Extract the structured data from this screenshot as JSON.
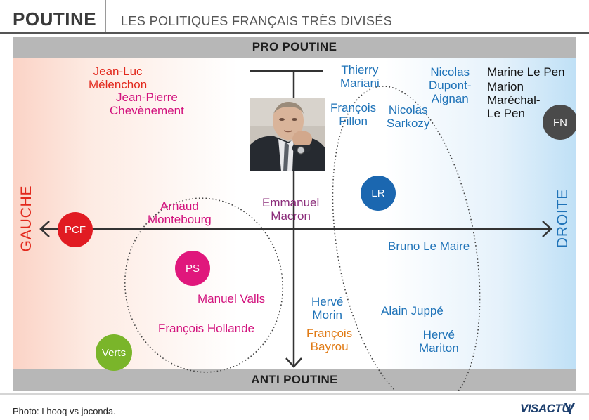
{
  "header": {
    "brand": "POUTINE",
    "subtitle": "LES POLITIQUES FRANÇAIS TRÈS DIVISÉS"
  },
  "axes": {
    "top": "PRO POUTINE",
    "bottom": "ANTI POUTINE",
    "left": "GAUCHE",
    "right": "DROITE"
  },
  "colors": {
    "left_red": "#e2281c",
    "magenta": "#d2127d",
    "purple": "#8b2c7a",
    "blue": "#1f73b8",
    "orange": "#e07a14",
    "black": "#111111",
    "pcf": "#e11b22",
    "ps": "#e0177c",
    "lr": "#1b67b0",
    "fn": "#4a4a4a",
    "verts": "#7ab52a"
  },
  "parties": {
    "pcf": "PCF",
    "ps": "PS",
    "lr": "LR",
    "fn": "FN",
    "verts": "Verts"
  },
  "politicians": {
    "melenchon": "Jean-Luc\nMélenchon",
    "chevenement": "Jean-Pierre\nChevènement",
    "mariani": "Thierry\nMariani",
    "dupont_aignan": "Nicolas\nDupont-\nAignan",
    "le_pen": "Marine Le Pen",
    "marechal": "Marion\nMaréchal-\nLe Pen",
    "fillon": "François\nFillon",
    "sarkozy": "Nicolas\nSarkozy",
    "montebourg": "Arnaud\nMontebourg",
    "macron": "Emmanuel\nMacron",
    "le_maire": "Bruno Le Maire",
    "valls": "Manuel Valls",
    "hollande": "François Hollande",
    "morin": "Hervé\nMorin",
    "juppe": "Alain Juppé",
    "bayrou": "François\nBayrou",
    "mariton": "Hervé\nMariton"
  },
  "photo": {
    "icon": "putin-portrait"
  },
  "footer": {
    "credit": "Photo: Lhooq vs joconda.",
    "logo": "VISACTU"
  }
}
